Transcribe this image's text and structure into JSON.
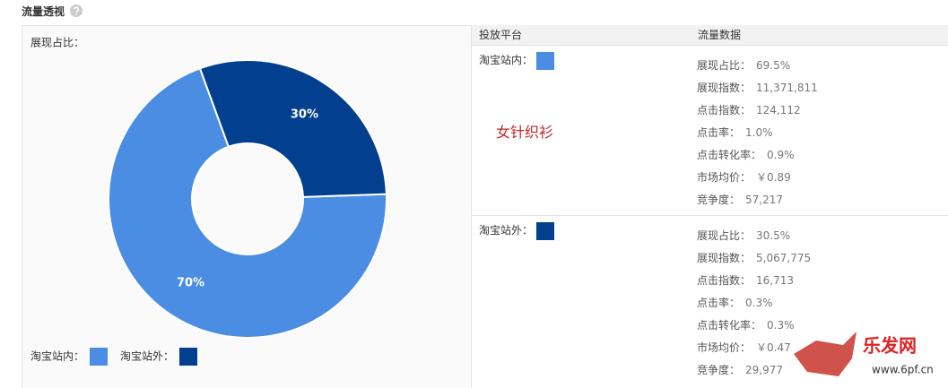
{
  "header": {
    "title": "流量透视"
  },
  "chart_data": {
    "type": "pie",
    "title": "展现占比：",
    "categories": [
      "淘宝站内：",
      "淘宝站外："
    ],
    "values": [
      70,
      30
    ],
    "value_labels": [
      "70%",
      "30%"
    ],
    "colors": [
      "#4a8de2",
      "#033f8f"
    ]
  },
  "table": {
    "headers": [
      "投放平台",
      "流量数据"
    ],
    "rows": [
      {
        "metrics": [
          [
            "展现占比：",
            "69.5%"
          ],
          [
            "展现指数：",
            "11,371,811"
          ],
          [
            "点击指数：",
            "124,112"
          ],
          [
            "点击率：",
            "1.0%"
          ],
          [
            "点击转化率：",
            "0.9%"
          ],
          [
            "市场均价：",
            "￥0.89"
          ],
          [
            "竞争度：",
            "57,217"
          ]
        ]
      },
      {
        "metrics": [
          [
            "展现占比：",
            "30.5%"
          ],
          [
            "展现指数：",
            "5,067,775"
          ],
          [
            "点击指数：",
            "16,713"
          ],
          [
            "点击率：",
            "0.3%"
          ],
          [
            "点击转化率：",
            "0.3%"
          ],
          [
            "市场均价：",
            "￥0.47"
          ],
          [
            "竞争度：",
            "29,977"
          ]
        ]
      }
    ]
  },
  "annotation": "女针织衫",
  "watermark": {
    "name": "乐发网",
    "url": "www.6pf.cn"
  }
}
